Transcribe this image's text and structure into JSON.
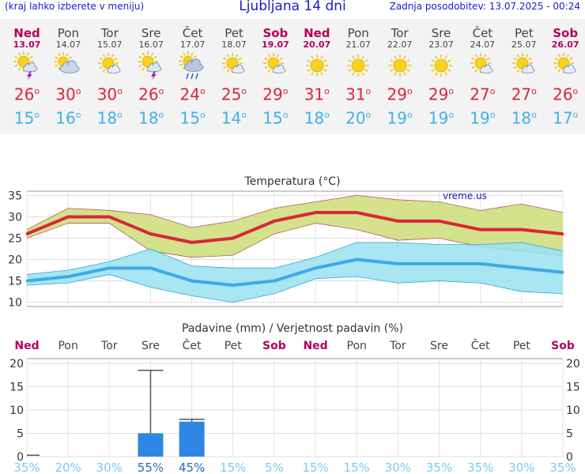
{
  "header": {
    "menu_hint": "(kraj lahko izberete v meniju)",
    "title": "Ljubljana 14 dni",
    "updated": "Zadnja posodobitev: 13.07.2025 - 00:24"
  },
  "days": [
    {
      "name": "Ned",
      "date": "13.07",
      "weekend": true,
      "icon": "sun-cloud-storm-icon",
      "tmax": "26",
      "tmin": "15"
    },
    {
      "name": "Pon",
      "date": "14.07",
      "weekend": false,
      "icon": "sun-cloud-icon",
      "tmax": "30",
      "tmin": "16"
    },
    {
      "name": "Tor",
      "date": "15.07",
      "weekend": false,
      "icon": "sun-small-cloud-icon",
      "tmax": "30",
      "tmin": "18"
    },
    {
      "name": "Sre",
      "date": "16.07",
      "weekend": false,
      "icon": "sun-cloud-storm-icon",
      "tmax": "26",
      "tmin": "18"
    },
    {
      "name": "Čet",
      "date": "17.07",
      "weekend": false,
      "icon": "sun-cloud-rain-icon",
      "tmax": "24",
      "tmin": "15"
    },
    {
      "name": "Pet",
      "date": "18.07",
      "weekend": false,
      "icon": "sun-small-cloud-icon",
      "tmax": "25",
      "tmin": "14"
    },
    {
      "name": "Sob",
      "date": "19.07",
      "weekend": true,
      "icon": "sun-small-cloud-icon",
      "tmax": "29",
      "tmin": "15"
    },
    {
      "name": "Ned",
      "date": "20.07",
      "weekend": true,
      "icon": "sun-icon",
      "tmax": "31",
      "tmin": "18"
    },
    {
      "name": "Pon",
      "date": "21.07",
      "weekend": false,
      "icon": "sun-icon",
      "tmax": "31",
      "tmin": "20"
    },
    {
      "name": "Tor",
      "date": "22.07",
      "weekend": false,
      "icon": "sun-icon",
      "tmax": "29",
      "tmin": "19"
    },
    {
      "name": "Sre",
      "date": "23.07",
      "weekend": false,
      "icon": "sun-icon",
      "tmax": "29",
      "tmin": "19"
    },
    {
      "name": "Čet",
      "date": "24.07",
      "weekend": false,
      "icon": "sun-small-cloud-icon",
      "tmax": "27",
      "tmin": "19"
    },
    {
      "name": "Pet",
      "date": "25.07",
      "weekend": false,
      "icon": "sun-small-cloud-icon",
      "tmax": "27",
      "tmin": "18"
    },
    {
      "name": "Sob",
      "date": "26.07",
      "weekend": true,
      "icon": "sun-small-cloud-icon",
      "tmax": "26",
      "tmin": "17"
    }
  ],
  "chart_data": [
    {
      "type": "line",
      "title": "Temperatura (°C)",
      "watermark": "vreme.us",
      "categories": [
        "Ned",
        "Pon",
        "Tor",
        "Sre",
        "Čet",
        "Pet",
        "Sob",
        "Ned",
        "Pon",
        "Tor",
        "Sre",
        "Čet",
        "Pet",
        "Sob"
      ],
      "ylim": [
        9,
        36
      ],
      "yticks": [
        10,
        15,
        20,
        25,
        30,
        35
      ],
      "grid": true,
      "series": [
        {
          "role": "max",
          "color": "#d9263a",
          "values": [
            26,
            30,
            30,
            26,
            24,
            25,
            29,
            31,
            31,
            29,
            29,
            27,
            27,
            26
          ]
        },
        {
          "role": "max-band-high",
          "color": "#ccdd77",
          "values": [
            27,
            32,
            31.5,
            30.5,
            27.5,
            29,
            32,
            33.5,
            35,
            34,
            33.5,
            31.5,
            33,
            31
          ]
        },
        {
          "role": "max-band-low",
          "color": "#ccdd77",
          "values": [
            25,
            28.5,
            28.5,
            22,
            20.5,
            21,
            26,
            28.5,
            27,
            24.5,
            25,
            23,
            22,
            21
          ]
        },
        {
          "role": "min",
          "color": "#3fa9e6",
          "values": [
            15,
            16,
            18,
            18,
            15,
            14,
            15,
            18,
            20,
            19,
            19,
            19,
            18,
            17
          ]
        },
        {
          "role": "min-band-high",
          "color": "#99e2ee",
          "values": [
            16.5,
            17.5,
            19.5,
            22.5,
            18.5,
            18,
            18,
            20.5,
            24,
            24,
            23.5,
            23.5,
            24,
            22
          ]
        },
        {
          "role": "min-band-low",
          "color": "#99e2ee",
          "values": [
            14,
            14.5,
            16.5,
            13.5,
            11.5,
            10,
            12,
            15.5,
            16,
            14.5,
            15,
            14.5,
            12.5,
            12
          ]
        }
      ]
    },
    {
      "type": "bar",
      "title": "Padavine (mm) / Verjetnost padavin (%)",
      "categories": [
        "Ned",
        "Pon",
        "Tor",
        "Sre",
        "Čet",
        "Pet",
        "Sob",
        "Ned",
        "Pon",
        "Tor",
        "Sre",
        "Čet",
        "Pet",
        "Sob"
      ],
      "ylim": [
        0,
        21
      ],
      "yticks": [
        0,
        5,
        10,
        15,
        20
      ],
      "series": [
        {
          "name": "Padavine (mm)",
          "color": "#2f86e4",
          "values": [
            0,
            0,
            0,
            5,
            7.5,
            0,
            0,
            0,
            0,
            0,
            0,
            0,
            0,
            0
          ]
        },
        {
          "name": "max (mm)",
          "color": "#555555",
          "values": [
            0.3,
            0,
            0,
            18.5,
            8,
            0,
            0,
            0,
            0,
            0,
            0,
            0,
            0,
            0
          ]
        }
      ],
      "probability": [
        "35%",
        "20%",
        "30%",
        "55%",
        "45%",
        "15%",
        "5%",
        "15%",
        "15%",
        "30%",
        "35%",
        "35%",
        "30%",
        "35%"
      ],
      "probability_colors": {
        "high": "#2a6ac0",
        "low": "#78cbef"
      }
    }
  ]
}
